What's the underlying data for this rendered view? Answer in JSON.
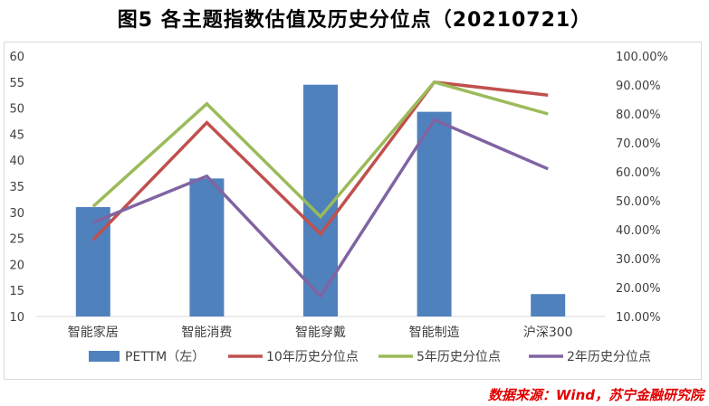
{
  "title": "图5  各主题指数估值及历史分位点（20210721）",
  "source": "数据来源：Wind，苏宁金融研究院",
  "chart_data": {
    "type": "bar+line",
    "categories": [
      "智能家居",
      "智能消费",
      "智能穿戴",
      "智能制造",
      "沪深300"
    ],
    "left_axis": {
      "min": 10,
      "max": 60,
      "step": 5,
      "ticks": [
        "10",
        "15",
        "20",
        "25",
        "30",
        "35",
        "40",
        "45",
        "50",
        "55",
        "60"
      ]
    },
    "right_axis": {
      "min": 0.1,
      "max": 1.0,
      "ticks": [
        "10.00%",
        "20.00%",
        "30.00%",
        "40.00%",
        "50.00%",
        "60.00%",
        "70.00%",
        "80.00%",
        "90.00%",
        "100.00%"
      ]
    },
    "bar_series": {
      "name": "PETTM（左）",
      "color": "#4f81bd",
      "values": [
        31.0,
        36.5,
        54.5,
        49.3,
        14.3
      ]
    },
    "line_series": [
      {
        "name": "10年历史分位点",
        "color": "#c0504d",
        "values": [
          0.365,
          0.77,
          0.385,
          0.91,
          0.865
        ]
      },
      {
        "name": "5年历史分位点",
        "color": "#9bbb59",
        "values": [
          0.48,
          0.835,
          0.445,
          0.91,
          0.8
        ]
      },
      {
        "name": "2年历史分位点",
        "color": "#8064a2",
        "values": [
          0.425,
          0.585,
          0.17,
          0.78,
          0.61
        ]
      }
    ],
    "legend_position": "bottom",
    "grid": false
  }
}
